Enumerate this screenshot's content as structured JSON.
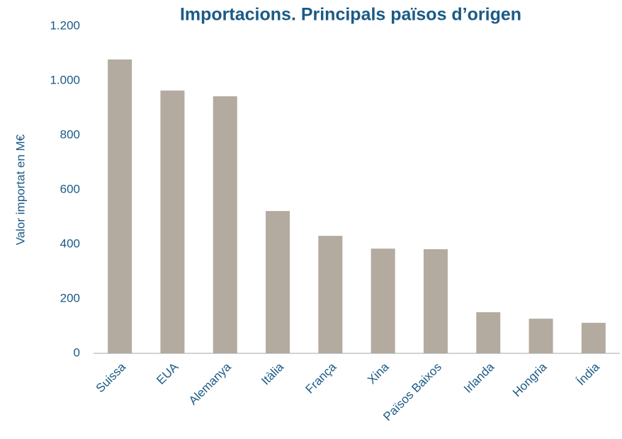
{
  "chart_data": {
    "type": "bar",
    "title": "Importacions. Principals països d’origen",
    "y_label": "Valor importat en M€",
    "categories": [
      "Suissa",
      "EUA",
      "Alemanya",
      "Itàlia",
      "França",
      "Xina",
      "Països Baixos",
      "Irlanda",
      "Hongria",
      "Índia"
    ],
    "values": [
      1078,
      964,
      943,
      522,
      431,
      384,
      382,
      151,
      127,
      112
    ],
    "color": "#b3aba0",
    "ylim": [
      0,
      1200
    ],
    "yticks": [
      0,
      200,
      400,
      600,
      800,
      {
        "value": 1000,
        "label": "1.000"
      },
      {
        "value": 1200,
        "label": "1.200"
      }
    ],
    "grid": false
  }
}
